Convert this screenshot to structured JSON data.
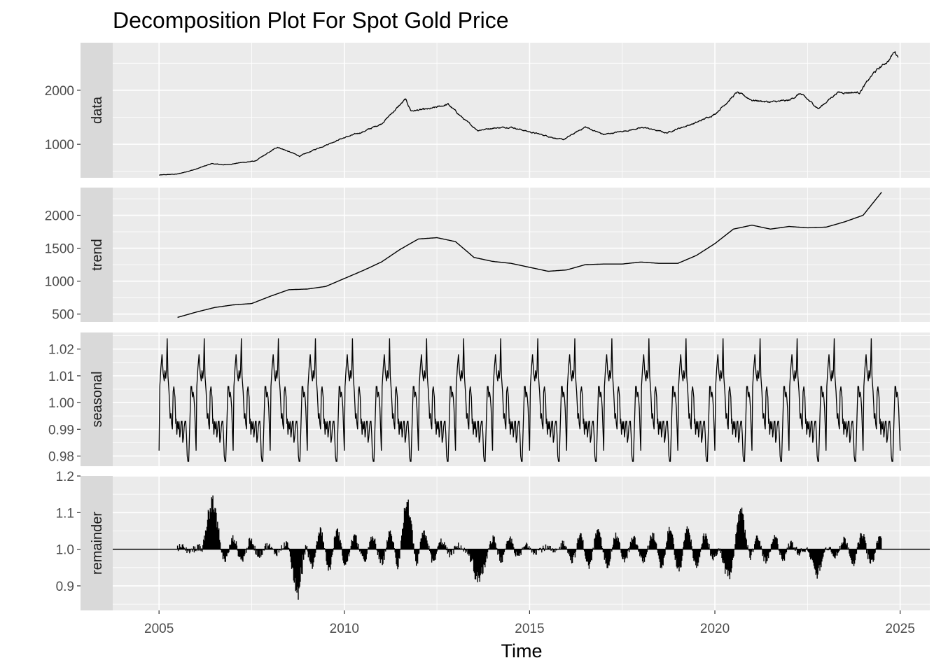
{
  "chart_data": {
    "type": "line",
    "title": "Decomposition Plot For Spot Gold Price",
    "xlabel": "Time",
    "ylabel": "",
    "xlim": [
      2003.75,
      2025.8
    ],
    "x_ticks": [
      2005,
      2010,
      2015,
      2020,
      2025
    ],
    "grid": true,
    "legend": "none",
    "line_color": "#000000",
    "panel_background": "#ebebeb",
    "strip_background": "#d9d9d9",
    "panels": [
      {
        "name": "data",
        "ylim": [
          380,
          2880
        ],
        "y_ticks": [
          1000,
          2000
        ],
        "y_tick_labels": [
          "1000",
          "2000"
        ],
        "x": [
          2005.0,
          2005.5,
          2006.0,
          2006.4,
          2006.8,
          2007.2,
          2007.6,
          2008.2,
          2008.8,
          2009.3,
          2009.9,
          2010.5,
          2011.0,
          2011.65,
          2011.8,
          2012.3,
          2012.8,
          2013.3,
          2013.6,
          2014.0,
          2014.5,
          2015.0,
          2015.5,
          2015.9,
          2016.5,
          2017.0,
          2017.5,
          2018.1,
          2018.7,
          2019.0,
          2019.5,
          2020.0,
          2020.6,
          2021.0,
          2021.5,
          2022.0,
          2022.3,
          2022.8,
          2023.3,
          2023.9,
          2024.3,
          2024.7,
          2024.85,
          2024.95
        ],
        "y": [
          430,
          450,
          540,
          640,
          620,
          660,
          690,
          950,
          780,
          930,
          1100,
          1230,
          1380,
          1830,
          1620,
          1650,
          1740,
          1420,
          1260,
          1300,
          1320,
          1230,
          1150,
          1080,
          1320,
          1180,
          1240,
          1310,
          1210,
          1290,
          1400,
          1560,
          1960,
          1820,
          1780,
          1810,
          1940,
          1660,
          1960,
          1960,
          2330,
          2560,
          2720,
          2620
        ]
      },
      {
        "name": "trend",
        "ylim": [
          380,
          2420
        ],
        "y_ticks": [
          500,
          1000,
          1500,
          2000
        ],
        "y_tick_labels": [
          "500",
          "1000",
          "1500",
          "2000"
        ],
        "x": [
          2005.5,
          2006.0,
          2006.5,
          2007.0,
          2007.5,
          2008.0,
          2008.5,
          2009.0,
          2009.5,
          2010.0,
          2010.5,
          2011.0,
          2011.5,
          2012.0,
          2012.5,
          2013.0,
          2013.5,
          2014.0,
          2014.5,
          2015.0,
          2015.5,
          2016.0,
          2016.5,
          2017.0,
          2017.5,
          2018.0,
          2018.5,
          2019.0,
          2019.5,
          2020.0,
          2020.5,
          2021.0,
          2021.5,
          2022.0,
          2022.5,
          2023.0,
          2023.5,
          2024.0,
          2024.5
        ],
        "y": [
          450,
          530,
          600,
          640,
          660,
          770,
          870,
          880,
          920,
          1040,
          1160,
          1290,
          1480,
          1640,
          1660,
          1600,
          1360,
          1300,
          1270,
          1210,
          1150,
          1170,
          1250,
          1260,
          1260,
          1290,
          1270,
          1270,
          1390,
          1570,
          1790,
          1850,
          1790,
          1830,
          1810,
          1820,
          1900,
          2000,
          2350
        ]
      },
      {
        "name": "seasonal",
        "ylim": [
          0.9762,
          1.0262
        ],
        "y_ticks": [
          0.98,
          0.99,
          1.0,
          1.01,
          1.02
        ],
        "y_tick_labels": [
          "0.98",
          "0.99",
          "1.00",
          "1.01",
          "1.02"
        ],
        "period_start": 2005.0,
        "period_end": 2025.0,
        "cycle_x": [
          0.0,
          0.02,
          0.05,
          0.08,
          0.11,
          0.14,
          0.16,
          0.18,
          0.2,
          0.22,
          0.24,
          0.27,
          0.29,
          0.3,
          0.32,
          0.34,
          0.36,
          0.38,
          0.4,
          0.43,
          0.45,
          0.46,
          0.48,
          0.5,
          0.52,
          0.54,
          0.56,
          0.58,
          0.6,
          0.62,
          0.64,
          0.66,
          0.68,
          0.7,
          0.72,
          0.74,
          0.76,
          0.78,
          0.8,
          0.83,
          0.86,
          0.88,
          0.9,
          0.92,
          0.94,
          0.96,
          0.98,
          1.0
        ],
        "cycle_y": [
          0.982,
          1.006,
          1.013,
          1.018,
          1.011,
          1.008,
          1.012,
          1.009,
          1.012,
          1.024,
          1.01,
          1.004,
          0.998,
          0.994,
          0.996,
          0.992,
          0.99,
          1.004,
          1.006,
          1.002,
          0.992,
          0.994,
          0.988,
          0.993,
          0.99,
          0.993,
          0.987,
          0.99,
          0.993,
          0.993,
          0.985,
          0.987,
          0.991,
          0.993,
          0.993,
          0.988,
          0.98,
          0.978,
          0.978,
          0.992,
          1.006,
          1.006,
          1.002,
          1.004,
          1.002,
          0.998,
          0.99,
          0.982
        ]
      },
      {
        "name": "remainder",
        "ylim": [
          0.833,
          1.2
        ],
        "y_ticks": [
          0.9,
          1.0,
          1.1,
          1.2
        ],
        "y_tick_labels": [
          "0.9",
          "1.0",
          "1.1",
          "1.2"
        ],
        "baseline": 1.0,
        "x_range": [
          2005.5,
          2024.5
        ],
        "anomalies": [
          {
            "x": 2006.42,
            "y": 1.187
          },
          {
            "x": 2008.75,
            "y": 0.845
          },
          {
            "x": 2011.7,
            "y": 1.15
          },
          {
            "x": 2013.6,
            "y": 0.877
          },
          {
            "x": 2020.7,
            "y": 1.13
          },
          {
            "x": 2020.35,
            "y": 0.9
          },
          {
            "x": 2022.75,
            "y": 0.91
          }
        ]
      }
    ]
  }
}
